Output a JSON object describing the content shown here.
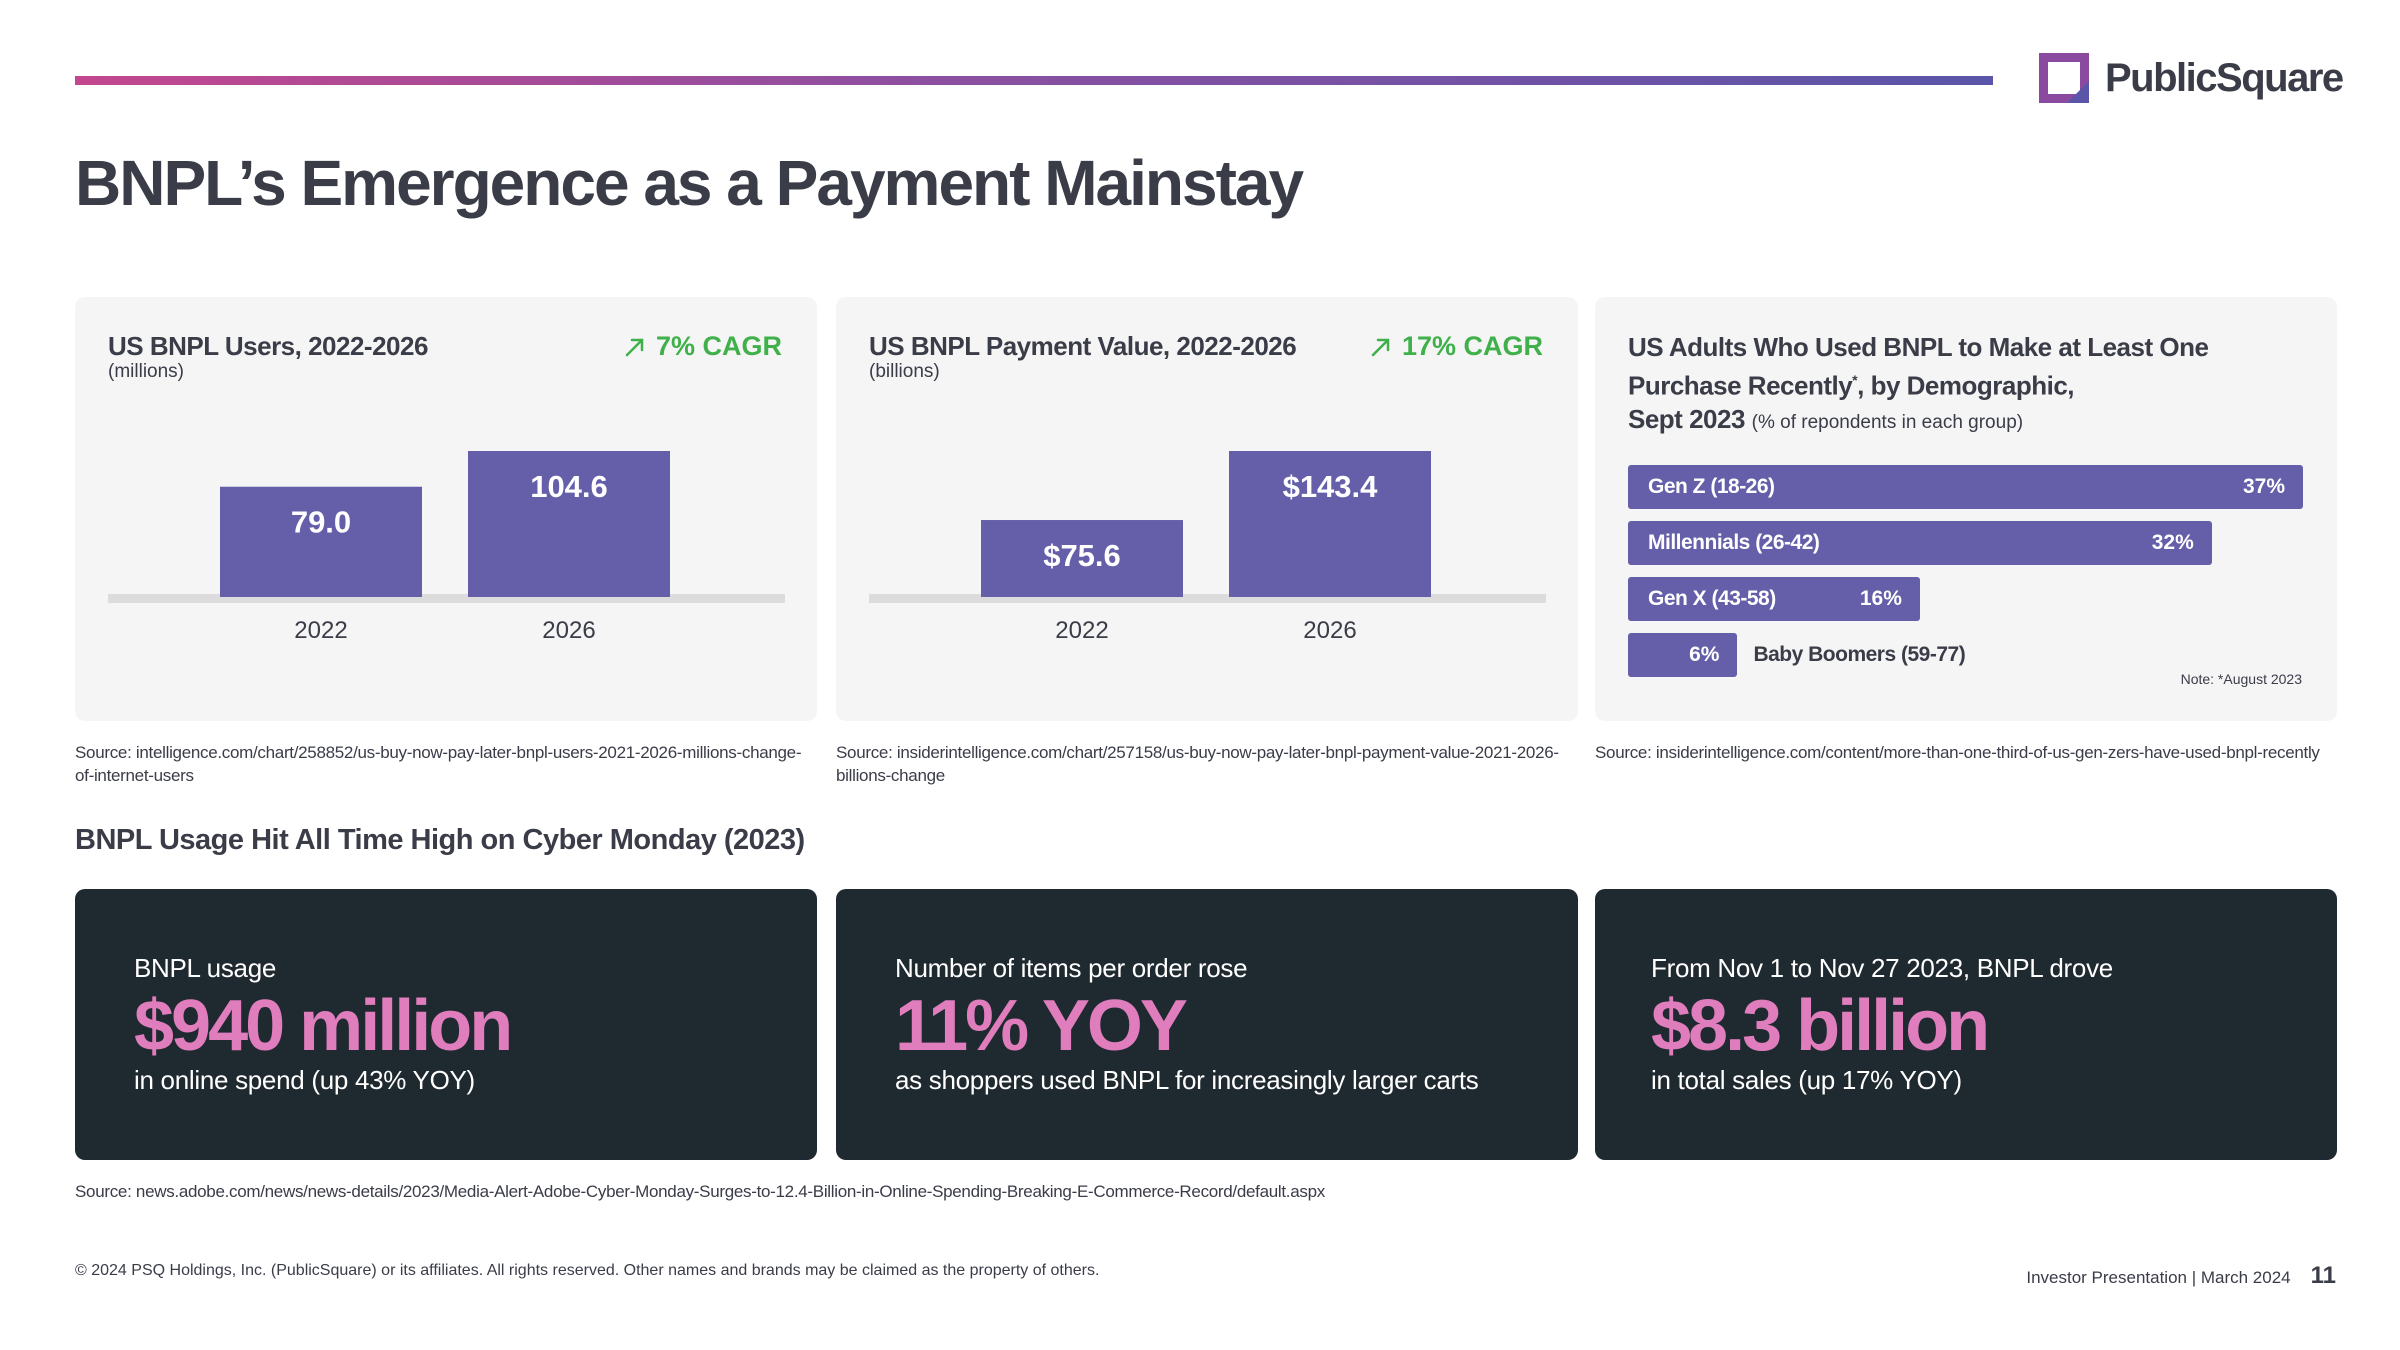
{
  "header": {
    "logo_text": "PublicSquare",
    "page_title": "BNPL’s Emergence as a Payment Mainstay"
  },
  "colors": {
    "bar": "#655fa9",
    "cagr": "#3fb04a",
    "stat_bg": "#1f2930",
    "stat_accent": "#e07dbd",
    "baseline": "#dcdcdc"
  },
  "users_card": {
    "title": "US BNPL Users, 2022-2026",
    "subtitle": "(millions)",
    "cagr": "7% CAGR",
    "source": "Source: intelligence.com/chart/258852/us-buy-now-pay-later-bnpl-users-2021-2026-millions-change-of-internet-users"
  },
  "value_card": {
    "title": "US BNPL Payment Value, 2022-2026",
    "subtitle": "(billions)",
    "cagr": "17% CAGR",
    "source": "Source: insiderintelligence.com/chart/257158/us-buy-now-pay-later-bnpl-payment-value-2021-2026-billions-change"
  },
  "demo_card": {
    "title_line1": "US Adults Who Used BNPL to Make at Least One",
    "title_line2": "Purchase Recently",
    "title_sup": "*",
    "title_line2b": ", by Demographic,",
    "title_line3": "Sept 2023",
    "title_small": "(% of repondents in each group)",
    "note": "Note: *August 2023",
    "source": "Source: insiderintelligence.com/content/more-than-one-third-of-us-gen-zers-have-used-bnpl-recently"
  },
  "chart_data": [
    {
      "type": "bar",
      "title": "US BNPL Users, 2022-2026",
      "categories": [
        "2022",
        "2026"
      ],
      "values": [
        79.0,
        104.6
      ],
      "labels": [
        "79.0",
        "104.6"
      ]
    },
    {
      "type": "bar",
      "title": "US BNPL Payment Value, 2022-2026",
      "categories": [
        "2022",
        "2026"
      ],
      "values": [
        75.6,
        143.4
      ],
      "labels": [
        "$75.6",
        "$143.4"
      ]
    },
    {
      "type": "bar",
      "orientation": "horizontal",
      "title": "US Adults Who Used BNPL to Make at Least One Purchase Recently*, by Demographic, Sept 2023",
      "categories": [
        "Gen Z (18-26)",
        "Millennials (26-42)",
        "Gen X (43-58)",
        "Baby Boomers (59-77)"
      ],
      "values": [
        37,
        32,
        16,
        6
      ],
      "labels": [
        "37%",
        "32%",
        "16%",
        "6%"
      ]
    }
  ],
  "cyber": {
    "section_title": "BNPL Usage Hit All Time High on Cyber Monday (2023)",
    "stats": [
      {
        "pre": "BNPL usage",
        "big": "$940 million",
        "post": "in online spend (up 43% YOY)"
      },
      {
        "pre": "Number of items per order rose",
        "big": "11% YOY",
        "post": "as shoppers used BNPL for increasingly larger carts"
      },
      {
        "pre": "From Nov 1 to Nov 27 2023, BNPL drove",
        "big": "$8.3 billion",
        "post": "in total sales (up 17% YOY)"
      }
    ],
    "source": "Source: news.adobe.com/news/news-details/2023/Media-Alert-Adobe-Cyber-Monday-Surges-to-12.4-Billion-in-Online-Spending-Breaking-E-Commerce-Record/default.aspx"
  },
  "footer": {
    "copyright": "© 2024 PSQ Holdings, Inc. (PublicSquare) or its affiliates. All rights reserved. Other names and brands may be claimed as the property of others.",
    "presentation": "Investor Presentation | March 2024",
    "page_number": "11"
  }
}
